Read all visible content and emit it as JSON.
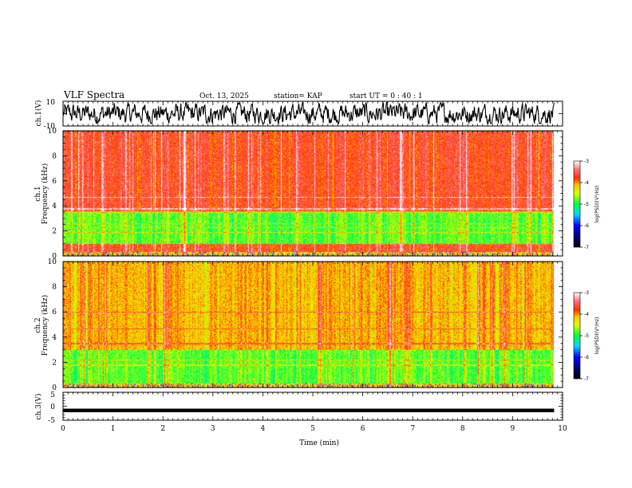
{
  "header": {
    "title": "VLF Spectra",
    "date": "Oct. 13, 2025",
    "station": "station= KAP",
    "start_ut": "start  UT =   0 : 40 : 1"
  },
  "chart_data": [
    {
      "type": "line",
      "name": "ch1-waveform",
      "ylabel": "ch.1(V)",
      "ylim": [
        -10,
        10
      ],
      "y_ticks": [
        "10",
        "-10"
      ],
      "xlim": [
        0,
        10
      ],
      "data_end_min": 9.83,
      "amplitude_range": [
        -8,
        9
      ]
    },
    {
      "type": "heatmap",
      "name": "ch1-spectrogram",
      "ylabel": "ch.1\nFrequency (kHz)",
      "ylim": [
        0,
        10
      ],
      "y_ticks": [
        "0",
        "2",
        "4",
        "6",
        "8",
        "10"
      ],
      "xlim": [
        0,
        10
      ],
      "data_end_min": 9.83,
      "green_band_khz": [
        1.0,
        3.6
      ],
      "narrowband_lines_khz": [
        1.9,
        2.3,
        2.6,
        3.5,
        3.8,
        4.7
      ],
      "colorbar": {
        "label": "log(PSD)(V²/Hz)",
        "range": [
          -7,
          -3
        ],
        "ticks": [
          "-3",
          "-4",
          "-5",
          "-6",
          "-7"
        ]
      }
    },
    {
      "type": "heatmap",
      "name": "ch2-spectrogram",
      "ylabel": "ch.2\nFrequency (kHz)",
      "ylim": [
        0,
        10
      ],
      "y_ticks": [
        "0",
        "2",
        "4",
        "6",
        "8",
        "10"
      ],
      "xlim": [
        0,
        10
      ],
      "data_end_min": 9.83,
      "green_band_khz": [
        0.3,
        3.0
      ],
      "narrowband_lines_khz": [
        1.8,
        2.2,
        3.5,
        4.7,
        6.0
      ],
      "colorbar": {
        "label": "log(PSD)(V²/Hz)",
        "range": [
          -7,
          -3
        ],
        "ticks": [
          "-3",
          "-4",
          "-5",
          "-6",
          "-7"
        ]
      }
    },
    {
      "type": "line",
      "name": "ch3-waveform",
      "ylabel": "ch.3(V)",
      "ylim": [
        -5,
        5
      ],
      "y_ticks": [
        "5",
        "0",
        "-5"
      ],
      "xlim": [
        0,
        10
      ],
      "data_end_min": 9.83,
      "level": -1.5,
      "thickness_v": 1.3,
      "xlabel": "Time (min)",
      "x_ticks": [
        "0",
        "1",
        "2",
        "3",
        "4",
        "5",
        "6",
        "7",
        "8",
        "9",
        "10"
      ]
    }
  ]
}
